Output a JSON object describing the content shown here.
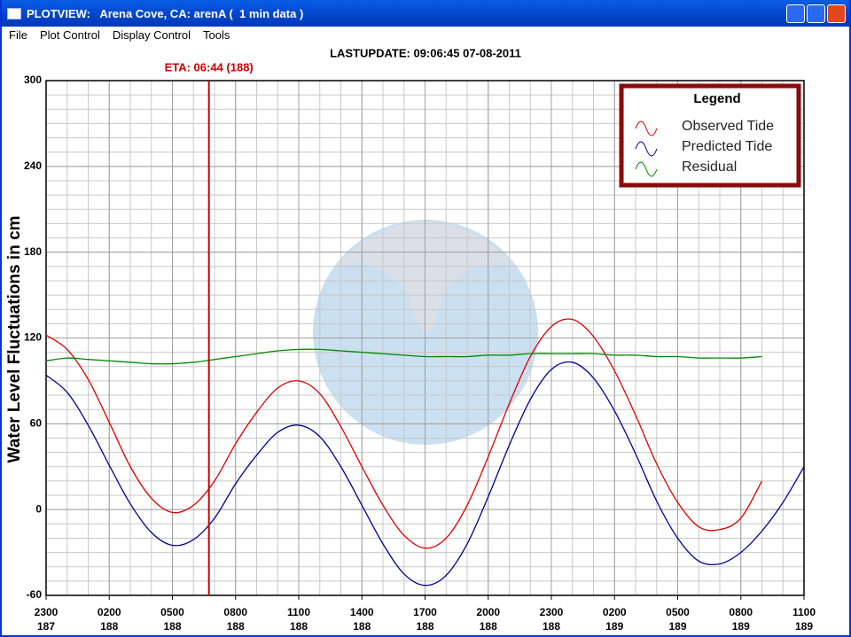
{
  "window": {
    "title": "PLOTVIEW:   Arena Cove, CA: arenA (  1 min data )",
    "menu": [
      "File",
      "Plot Control",
      "Display Control",
      "Tools"
    ]
  },
  "chart_data": {
    "type": "line",
    "title": "LASTUPDATE: 09:06:45  07-08-2011",
    "y_label": "Water Level Fluctuations in cm",
    "annotation": {
      "label": "ETA: 06:44 (188)",
      "x": 7.733,
      "color": "#cc0000"
    },
    "legend_title": "Legend",
    "legend": "top-right",
    "grid": true,
    "minor_xstep": 1,
    "minor_ystep": 10,
    "xlim": [
      0,
      36
    ],
    "ylim": [
      -60,
      300
    ],
    "yticks": [
      -60,
      0,
      60,
      120,
      180,
      240,
      300
    ],
    "xticks": [
      {
        "value": 0,
        "label": "2300",
        "day": "187"
      },
      {
        "value": 3,
        "label": "0200",
        "day": "188"
      },
      {
        "value": 6,
        "label": "0500",
        "day": "188"
      },
      {
        "value": 9,
        "label": "0800",
        "day": "188"
      },
      {
        "value": 12,
        "label": "1100",
        "day": "188"
      },
      {
        "value": 15,
        "label": "1400",
        "day": "188"
      },
      {
        "value": 18,
        "label": "1700",
        "day": "188"
      },
      {
        "value": 21,
        "label": "2000",
        "day": "188"
      },
      {
        "value": 24,
        "label": "2300",
        "day": "188"
      },
      {
        "value": 27,
        "label": "0200",
        "day": "189"
      },
      {
        "value": 30,
        "label": "0500",
        "day": "189"
      },
      {
        "value": 33,
        "label": "0800",
        "day": "189"
      },
      {
        "value": 36,
        "label": "1100",
        "day": "189"
      }
    ],
    "series": [
      {
        "name": "Observed Tide",
        "color": "#dd0000",
        "x": [
          0,
          1,
          2,
          3,
          4,
          5,
          6,
          7,
          8,
          9,
          10,
          11,
          12,
          13,
          14,
          15,
          16,
          17,
          18,
          19,
          20,
          21,
          22,
          23,
          24,
          25,
          26,
          27,
          28,
          29,
          30,
          31,
          32,
          33,
          34
        ],
        "values": [
          122,
          112,
          91,
          61,
          30,
          8,
          -2,
          3,
          20,
          46,
          68,
          85,
          90,
          81,
          58,
          30,
          3,
          -18,
          -27,
          -20,
          3,
          37,
          74,
          107,
          128,
          133,
          121,
          97,
          66,
          32,
          5,
          -12,
          -14,
          -6,
          20
        ]
      },
      {
        "name": "Predicted Tide",
        "color": "#000099",
        "x": [
          0,
          1,
          2,
          3,
          4,
          5,
          6,
          7,
          8,
          9,
          10,
          11,
          12,
          13,
          14,
          15,
          16,
          17,
          18,
          19,
          20,
          21,
          22,
          23,
          24,
          25,
          26,
          27,
          28,
          29,
          30,
          31,
          32,
          33,
          34,
          35,
          36
        ],
        "values": [
          94,
          82,
          59,
          31,
          4,
          -16,
          -25,
          -21,
          -6,
          18,
          38,
          54,
          59,
          51,
          30,
          3,
          -24,
          -45,
          -53,
          -46,
          -24,
          9,
          45,
          77,
          98,
          103,
          92,
          69,
          39,
          6,
          -20,
          -36,
          -38,
          -30,
          -15,
          5,
          30
        ]
      },
      {
        "name": "Residual",
        "color": "#008800",
        "x": [
          0,
          1,
          2,
          3,
          4,
          5,
          6,
          7,
          8,
          9,
          10,
          11,
          12,
          13,
          14,
          15,
          16,
          17,
          18,
          19,
          20,
          21,
          22,
          23,
          24,
          25,
          26,
          27,
          28,
          29,
          30,
          31,
          32,
          33,
          34
        ],
        "values": [
          104,
          106,
          105,
          104,
          103,
          102,
          102,
          103,
          105,
          107,
          109,
          111,
          112,
          112,
          111,
          110,
          109,
          108,
          107,
          107,
          107,
          108,
          108,
          109,
          109,
          109,
          109,
          108,
          108,
          107,
          107,
          106,
          106,
          106,
          107
        ]
      }
    ]
  }
}
